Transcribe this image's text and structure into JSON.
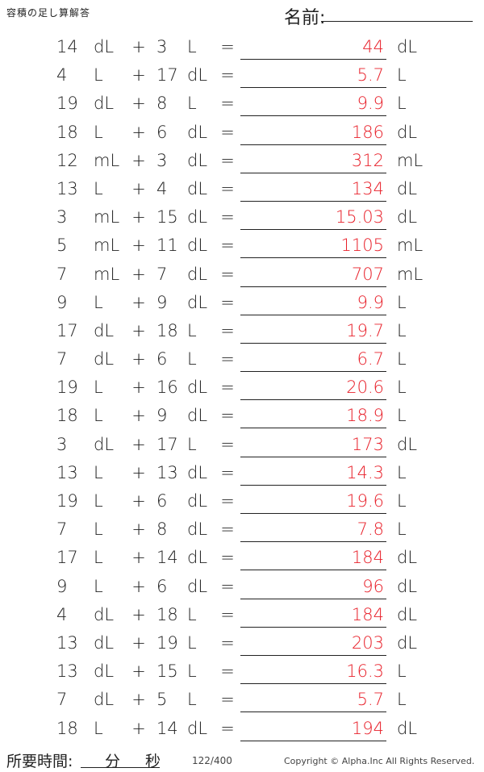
{
  "header": {
    "title": "容積の足し算解答",
    "name_label": "名前:",
    "name_dot": "."
  },
  "rows": [
    {
      "a": "14",
      "u1": "dL",
      "op": "+",
      "b": "3",
      "u2": "L",
      "eq": "=",
      "ans": "44",
      "unit": "dL"
    },
    {
      "a": "4",
      "u1": "L",
      "op": "+",
      "b": "17",
      "u2": "dL",
      "eq": "=",
      "ans": "5.7",
      "unit": "L"
    },
    {
      "a": "19",
      "u1": "dL",
      "op": "+",
      "b": "8",
      "u2": "L",
      "eq": "=",
      "ans": "9.9",
      "unit": "L"
    },
    {
      "a": "18",
      "u1": "L",
      "op": "+",
      "b": "6",
      "u2": "dL",
      "eq": "=",
      "ans": "186",
      "unit": "dL"
    },
    {
      "a": "12",
      "u1": "mL",
      "op": "+",
      "b": "3",
      "u2": "dL",
      "eq": "=",
      "ans": "312",
      "unit": "mL"
    },
    {
      "a": "13",
      "u1": "L",
      "op": "+",
      "b": "4",
      "u2": "dL",
      "eq": "=",
      "ans": "134",
      "unit": "dL"
    },
    {
      "a": "3",
      "u1": "mL",
      "op": "+",
      "b": "15",
      "u2": "dL",
      "eq": "=",
      "ans": "15.03",
      "unit": "dL"
    },
    {
      "a": "5",
      "u1": "mL",
      "op": "+",
      "b": "11",
      "u2": "dL",
      "eq": "=",
      "ans": "1105",
      "unit": "mL"
    },
    {
      "a": "7",
      "u1": "mL",
      "op": "+",
      "b": "7",
      "u2": "dL",
      "eq": "=",
      "ans": "707",
      "unit": "mL"
    },
    {
      "a": "9",
      "u1": "L",
      "op": "+",
      "b": "9",
      "u2": "dL",
      "eq": "=",
      "ans": "9.9",
      "unit": "L"
    },
    {
      "a": "17",
      "u1": "dL",
      "op": "+",
      "b": "18",
      "u2": "L",
      "eq": "=",
      "ans": "19.7",
      "unit": "L"
    },
    {
      "a": "7",
      "u1": "dL",
      "op": "+",
      "b": "6",
      "u2": "L",
      "eq": "=",
      "ans": "6.7",
      "unit": "L"
    },
    {
      "a": "19",
      "u1": "L",
      "op": "+",
      "b": "16",
      "u2": "dL",
      "eq": "=",
      "ans": "20.6",
      "unit": "L"
    },
    {
      "a": "18",
      "u1": "L",
      "op": "+",
      "b": "9",
      "u2": "dL",
      "eq": "=",
      "ans": "18.9",
      "unit": "L"
    },
    {
      "a": "3",
      "u1": "dL",
      "op": "+",
      "b": "17",
      "u2": "L",
      "eq": "=",
      "ans": "173",
      "unit": "dL"
    },
    {
      "a": "13",
      "u1": "L",
      "op": "+",
      "b": "13",
      "u2": "dL",
      "eq": "=",
      "ans": "14.3",
      "unit": "L"
    },
    {
      "a": "19",
      "u1": "L",
      "op": "+",
      "b": "6",
      "u2": "dL",
      "eq": "=",
      "ans": "19.6",
      "unit": "L"
    },
    {
      "a": "7",
      "u1": "L",
      "op": "+",
      "b": "8",
      "u2": "dL",
      "eq": "=",
      "ans": "7.8",
      "unit": "L"
    },
    {
      "a": "17",
      "u1": "L",
      "op": "+",
      "b": "14",
      "u2": "dL",
      "eq": "=",
      "ans": "184",
      "unit": "dL"
    },
    {
      "a": "9",
      "u1": "L",
      "op": "+",
      "b": "6",
      "u2": "dL",
      "eq": "=",
      "ans": "96",
      "unit": "dL"
    },
    {
      "a": "4",
      "u1": "dL",
      "op": "+",
      "b": "18",
      "u2": "L",
      "eq": "=",
      "ans": "184",
      "unit": "dL"
    },
    {
      "a": "13",
      "u1": "dL",
      "op": "+",
      "b": "19",
      "u2": "L",
      "eq": "=",
      "ans": "203",
      "unit": "dL"
    },
    {
      "a": "13",
      "u1": "dL",
      "op": "+",
      "b": "15",
      "u2": "L",
      "eq": "=",
      "ans": "16.3",
      "unit": "L"
    },
    {
      "a": "7",
      "u1": "dL",
      "op": "+",
      "b": "5",
      "u2": "L",
      "eq": "=",
      "ans": "5.7",
      "unit": "L"
    },
    {
      "a": "18",
      "u1": "L",
      "op": "+",
      "b": "14",
      "u2": "dL",
      "eq": "=",
      "ans": "194",
      "unit": "dL"
    }
  ],
  "footer": {
    "time_label": "所要時間:",
    "minutes_label": "分",
    "seconds_label": "秒",
    "page": "122/400",
    "copyright": "Copyright © Alpha.Inc All Rights Reserved."
  },
  "colors": {
    "answer": "#e8202a",
    "text": "#222222"
  }
}
